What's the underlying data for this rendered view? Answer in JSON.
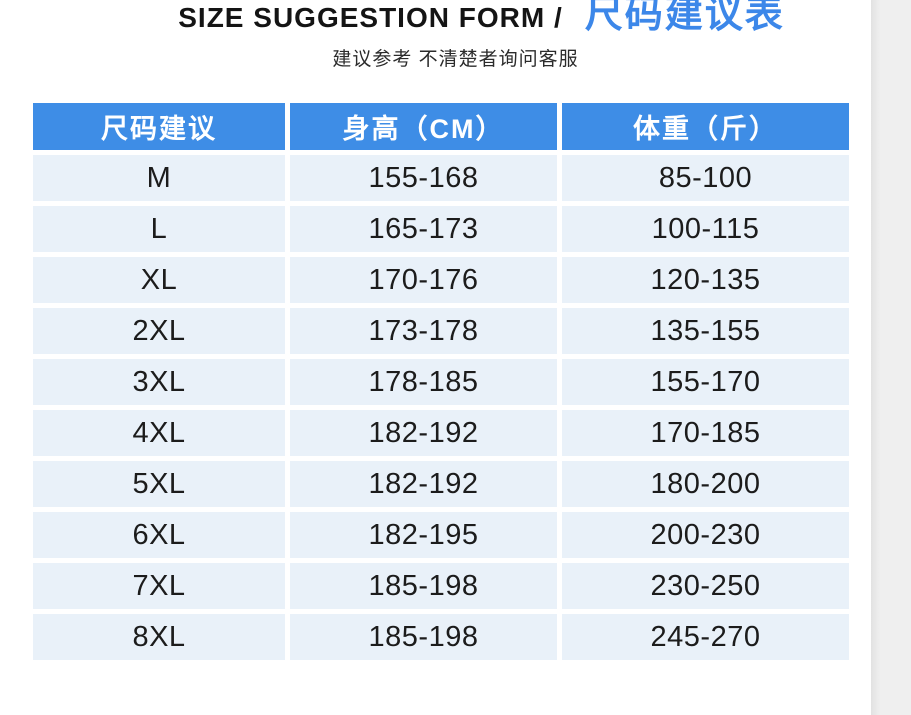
{
  "header": {
    "title_en": "SIZE SUGGESTION FORM /",
    "title_zh": "尺码建议表",
    "subtitle": "建议参考 不清楚者询问客服"
  },
  "chart_data": {
    "type": "table",
    "title": "尺码建议表",
    "columns": [
      "尺码建议",
      "身高（CM）",
      "体重（斤）"
    ],
    "rows": [
      [
        "M",
        "155-168",
        "85-100"
      ],
      [
        "L",
        "165-173",
        "100-115"
      ],
      [
        "XL",
        "170-176",
        "120-135"
      ],
      [
        "2XL",
        "173-178",
        "135-155"
      ],
      [
        "3XL",
        "178-185",
        "155-170"
      ],
      [
        "4XL",
        "182-192",
        "170-185"
      ],
      [
        "5XL",
        "182-192",
        "180-200"
      ],
      [
        "6XL",
        "182-195",
        "200-230"
      ],
      [
        "7XL",
        "185-198",
        "230-250"
      ],
      [
        "8XL",
        "185-198",
        "245-270"
      ]
    ]
  },
  "colors": {
    "header_bg": "#3e8de6",
    "row_bg": "#e9f1f9",
    "title_accent": "#3c87e9",
    "side_strip": "#efefef"
  }
}
